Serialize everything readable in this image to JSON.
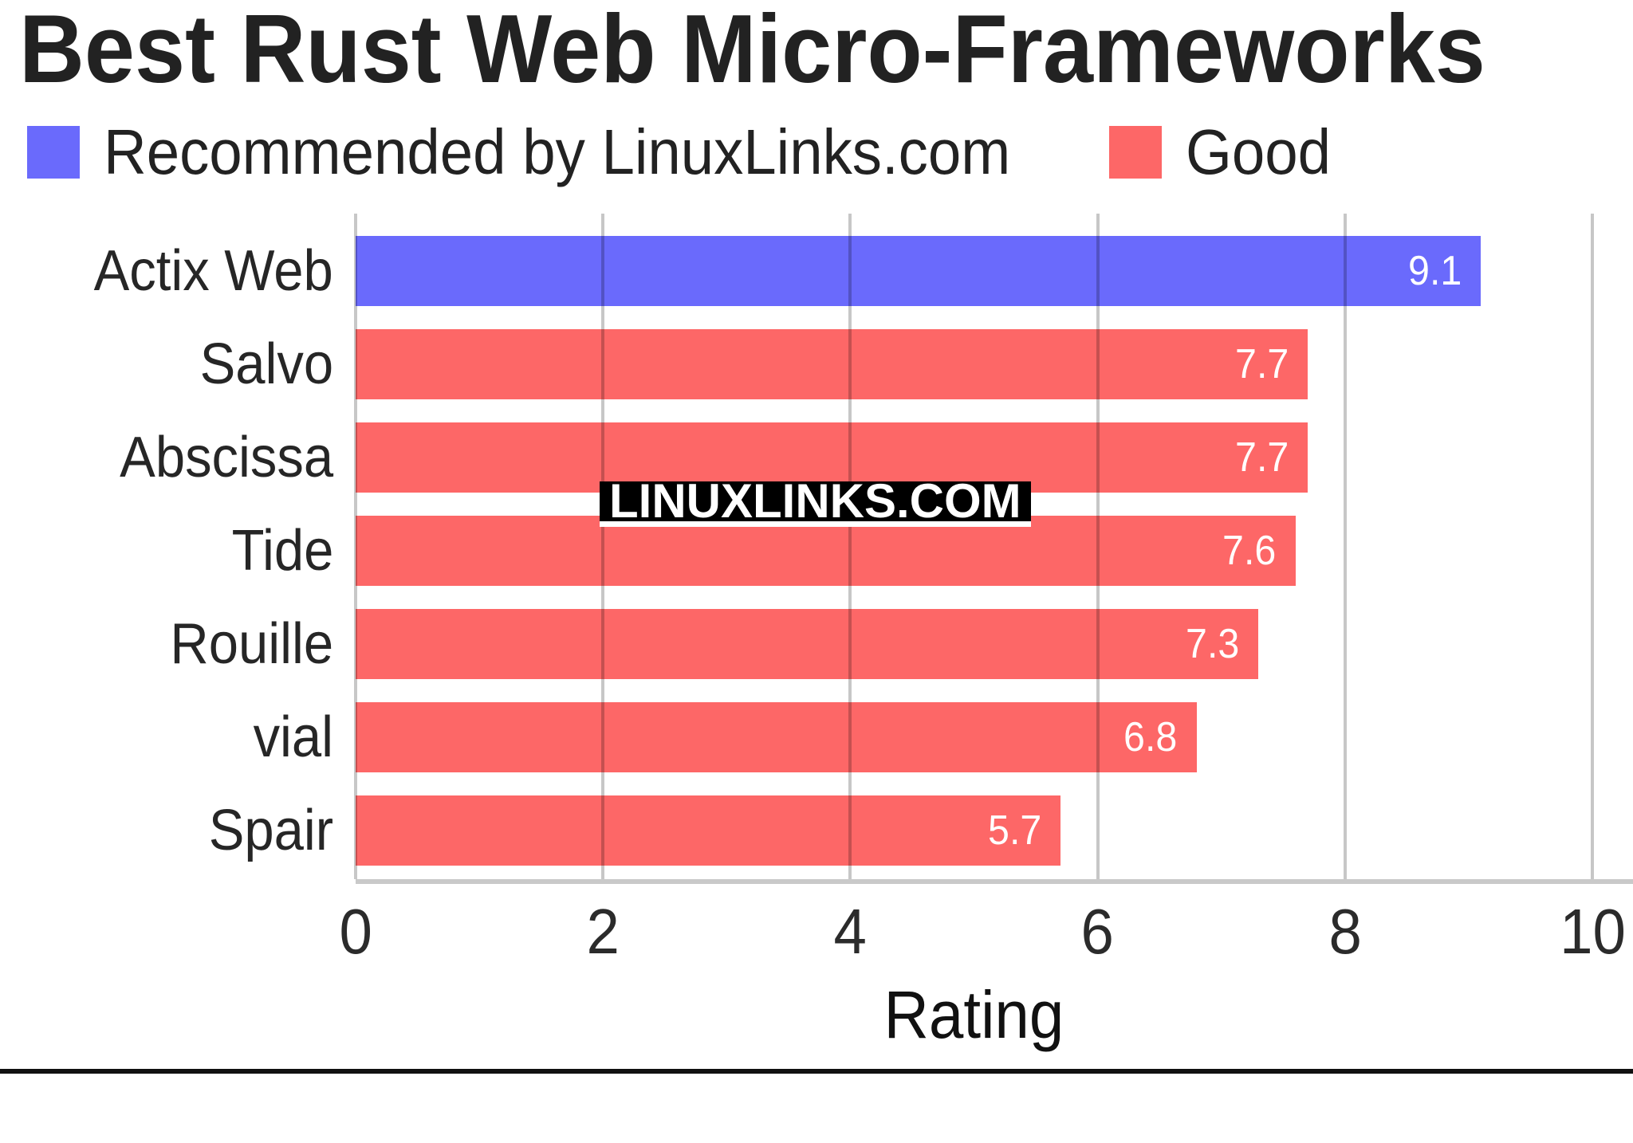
{
  "watermark": {
    "text": "LINUXLINKS.COM",
    "bg": "#000000",
    "fg": "#ffffff"
  },
  "colors": {
    "recommended_blue": "#6a6afc",
    "good_red": "#fd6767",
    "grid": "rgba(0,0,0,0.22)",
    "axis_line": "#c9c9c9",
    "bottom_rule": "#111111"
  },
  "chart_data": {
    "type": "bar",
    "orientation": "horizontal",
    "title": "Best Rust Web Micro-Frameworks",
    "categories": [
      "Actix Web",
      "Salvo",
      "Abscissa",
      "Tide",
      "Rouille",
      "vial",
      "Spair"
    ],
    "values": [
      9.1,
      7.7,
      7.7,
      7.6,
      7.3,
      6.8,
      5.7
    ],
    "value_labels": [
      "9.1",
      "7.7",
      "7.7",
      "7.6",
      "7.3",
      "6.8",
      "5.7"
    ],
    "bar_colors": [
      "#6a6afc",
      "#fd6767",
      "#fd6767",
      "#fd6767",
      "#fd6767",
      "#fd6767",
      "#fd6767"
    ],
    "series": [
      {
        "name": "Recommended by LinuxLinks.com",
        "color": "#6a6afc",
        "categories": [
          "Actix Web"
        ]
      },
      {
        "name": "Good",
        "color": "#fd6767",
        "categories": [
          "Salvo",
          "Abscissa",
          "Tide",
          "Rouille",
          "vial",
          "Spair"
        ]
      }
    ],
    "xlabel": "Rating",
    "xlim": [
      0,
      10
    ],
    "tick_labels": [
      "0",
      "2",
      "4",
      "6",
      "8",
      "10"
    ],
    "grid": true,
    "legend_position": "top-left"
  }
}
